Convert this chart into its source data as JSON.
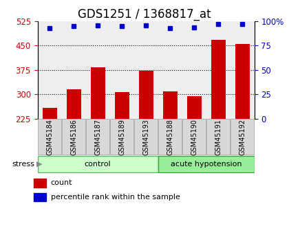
{
  "title": "GDS1251 / 1368817_at",
  "samples": [
    "GSM45184",
    "GSM45186",
    "GSM45187",
    "GSM45189",
    "GSM45193",
    "GSM45188",
    "GSM45190",
    "GSM45191",
    "GSM45192"
  ],
  "counts": [
    258,
    315,
    383,
    307,
    372,
    308,
    293,
    468,
    455
  ],
  "percentiles": [
    93,
    95,
    96,
    95,
    96,
    93,
    94,
    97,
    97
  ],
  "groups": [
    "control",
    "control",
    "control",
    "control",
    "control",
    "acute hypotension",
    "acute hypotension",
    "acute hypotension",
    "acute hypotension"
  ],
  "group_labels": [
    "control",
    "acute hypotension"
  ],
  "group_colors": [
    "#ccffcc",
    "#99ee99"
  ],
  "bar_color": "#cc0000",
  "dot_color": "#0000cc",
  "ylim_left": [
    225,
    525
  ],
  "ylim_right": [
    0,
    100
  ],
  "yticks_left": [
    225,
    300,
    375,
    450,
    525
  ],
  "yticks_right": [
    0,
    25,
    50,
    75,
    100
  ],
  "background_color": "#ffffff",
  "plot_bg_color": "#eeeeee",
  "title_fontsize": 12,
  "axis_label_color_left": "#cc0000",
  "axis_label_color_right": "#0000cc",
  "grid_vals": [
    300,
    375,
    450
  ],
  "n_control": 5,
  "n_acute": 4
}
